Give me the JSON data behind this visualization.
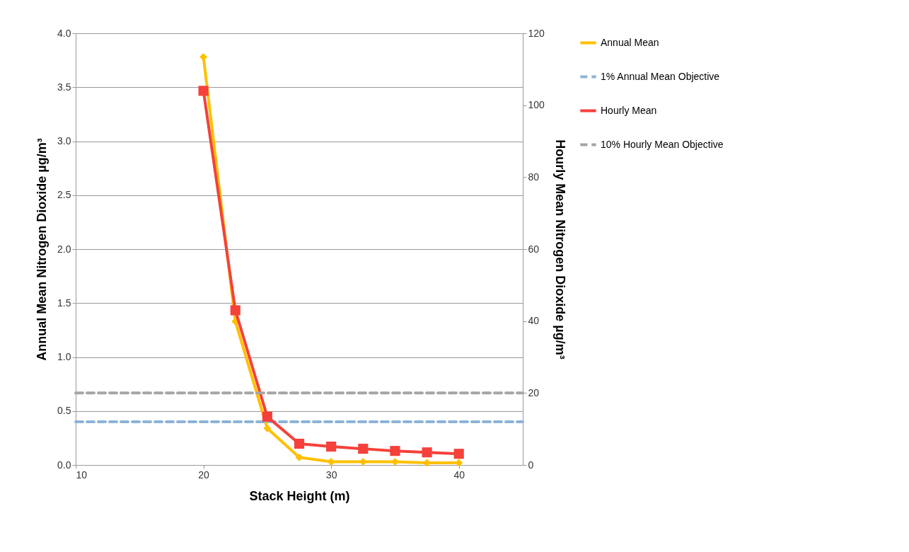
{
  "chart_data": {
    "type": "line",
    "xlabel": "Stack Height (m)",
    "ylabel": "Annual Mean Nitrogen Dioxide µg/m³",
    "y2label": "Hourly Mean Nitrogen Dioxide µg/m³",
    "x": [
      20,
      22.5,
      25,
      27.5,
      30,
      32.5,
      35,
      37.5,
      40
    ],
    "series": [
      {
        "name": "Annual Mean",
        "color": "#ffc000",
        "marker": "diamond",
        "values": [
          3.78,
          1.33,
          0.34,
          0.07,
          0.03,
          0.03,
          0.03,
          0.02,
          0.02
        ]
      },
      {
        "name": "Hourly Mean",
        "color": "#f5413a",
        "marker": "square",
        "axis": "y2",
        "values": [
          104,
          43,
          13.4,
          5.9,
          5.1,
          4.5,
          3.9,
          3.5,
          3.1
        ]
      }
    ],
    "ref_lines": [
      {
        "axis": "y",
        "value": 0.4,
        "label": "1% Annual Mean Objective",
        "color": "#8db3d8",
        "line_style": "dashed"
      },
      {
        "axis": "y2",
        "value": 20,
        "label": "10% Hourly Mean Objective",
        "color": "#a5a5a5",
        "line_style": "dashed"
      }
    ],
    "xlim": [
      10,
      45
    ],
    "xticks": [
      10,
      20,
      30,
      40
    ],
    "ylim": [
      0,
      4
    ],
    "yticks": [
      {
        "value": 0,
        "label": "0.0"
      },
      0.5,
      {
        "value": 1,
        "label": "1.0"
      },
      1.5,
      {
        "value": 2,
        "label": "2.0"
      },
      2.5,
      {
        "value": 3,
        "label": "3.0"
      },
      3.5,
      {
        "value": 4,
        "label": "4.0"
      }
    ],
    "y2lim": [
      0,
      120
    ],
    "y2ticks": [
      0,
      20,
      40,
      60,
      80,
      100,
      120
    ],
    "grid": "y",
    "legend": "right",
    "line_style": "solid"
  }
}
